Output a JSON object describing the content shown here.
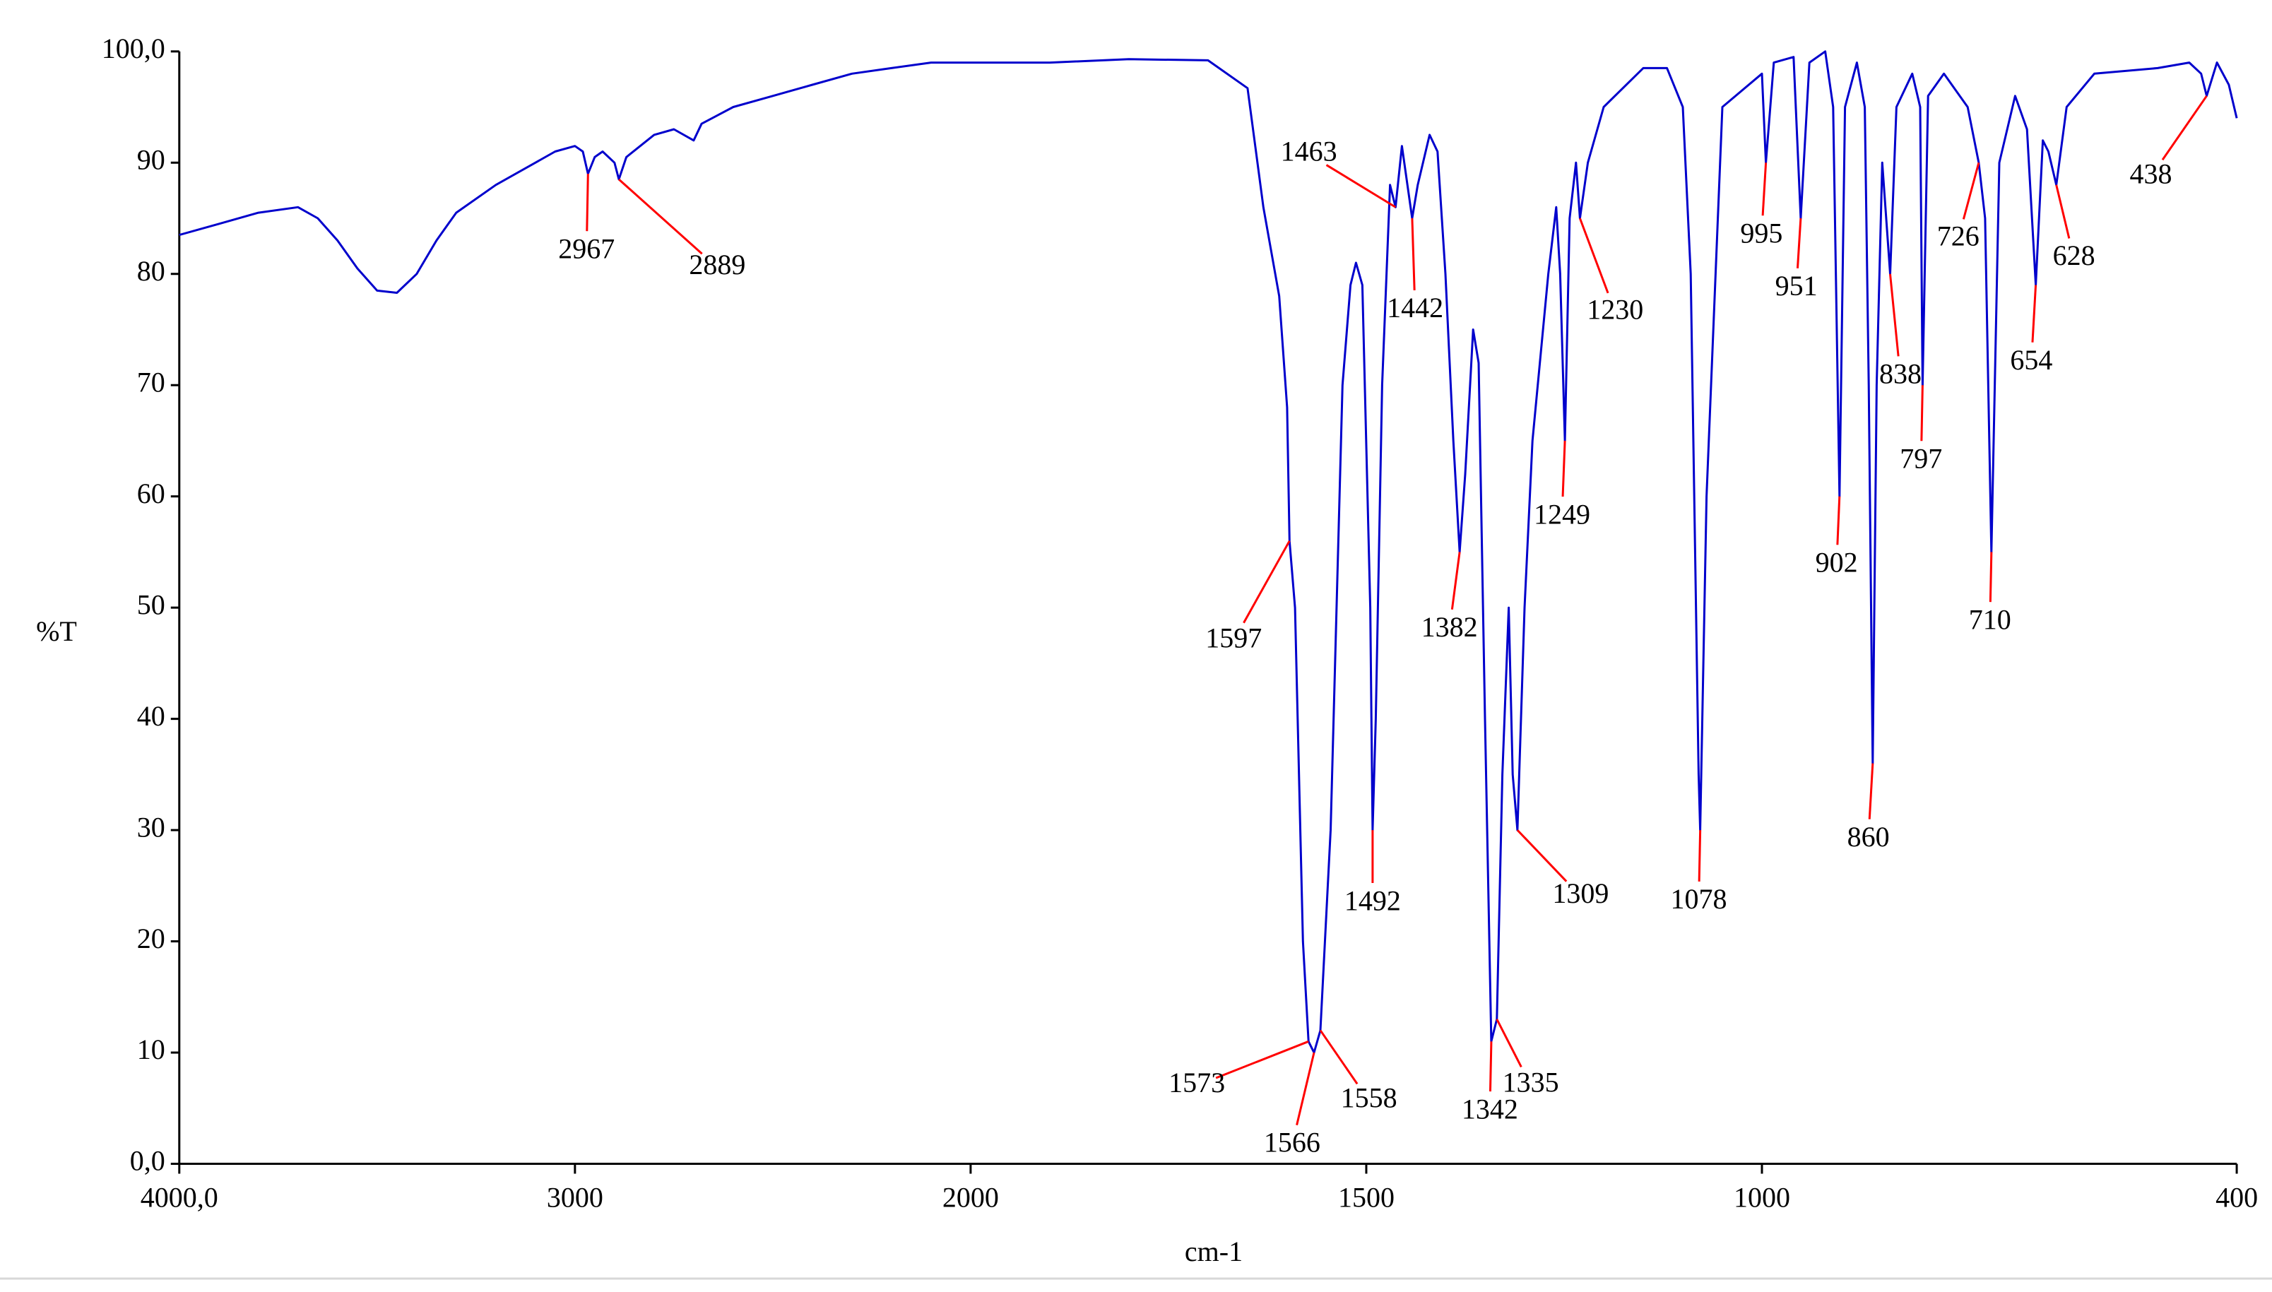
{
  "chart_data": {
    "type": "line",
    "x_label": "cm-1",
    "y_label": "%T",
    "xlim": [
      4000,
      400
    ],
    "ylim": [
      0,
      100
    ],
    "x_break": 2000,
    "x_expand": 2,
    "xticks": [
      {
        "value": 4000,
        "label": "4000,0"
      },
      3000,
      2000,
      1500,
      1000,
      400
    ],
    "yticks": [
      {
        "value": 0,
        "label": "0,0"
      },
      10,
      20,
      30,
      40,
      50,
      60,
      70,
      80,
      90,
      {
        "value": 100,
        "label": "100,0"
      }
    ],
    "color": "#0000cc",
    "x": [
      4000,
      3900,
      3800,
      3700,
      3650,
      3600,
      3550,
      3500,
      3450,
      3400,
      3350,
      3300,
      3200,
      3100,
      3050,
      3000,
      2980,
      2967,
      2950,
      2930,
      2900,
      2889,
      2870,
      2800,
      2750,
      2700,
      2680,
      2600,
      2500,
      2400,
      2300,
      2200,
      2100,
      2000,
      1900,
      1800,
      1700,
      1650,
      1630,
      1610,
      1600,
      1597,
      1590,
      1580,
      1573,
      1566,
      1558,
      1545,
      1530,
      1520,
      1513,
      1505,
      1495,
      1492,
      1488,
      1480,
      1470,
      1463,
      1455,
      1448,
      1442,
      1435,
      1420,
      1410,
      1400,
      1390,
      1382,
      1375,
      1365,
      1358,
      1350,
      1342,
      1335,
      1328,
      1320,
      1315,
      1309,
      1300,
      1290,
      1270,
      1260,
      1255,
      1249,
      1243,
      1235,
      1230,
      1220,
      1200,
      1150,
      1120,
      1100,
      1090,
      1080,
      1078,
      1070,
      1050,
      1000,
      995,
      985,
      960,
      951,
      940,
      920,
      910,
      902,
      895,
      880,
      870,
      865,
      860,
      855,
      848,
      838,
      830,
      810,
      800,
      797,
      790,
      770,
      740,
      726,
      718,
      710,
      700,
      680,
      665,
      654,
      645,
      638,
      628,
      615,
      580,
      500,
      460,
      445,
      438,
      425,
      410,
      400
    ],
    "values": [
      83.5,
      84.5,
      85.5,
      86,
      85,
      83,
      80.5,
      78.5,
      78.3,
      80,
      83,
      85.5,
      88,
      90,
      91,
      91.5,
      91,
      89,
      90.5,
      91,
      90,
      88.5,
      90.5,
      92.5,
      93,
      92,
      93.5,
      95,
      96,
      97,
      98,
      98.5,
      99,
      99,
      99,
      99.3,
      99.2,
      96.7,
      86,
      78,
      68,
      56,
      50,
      20,
      11,
      10,
      12,
      30,
      70,
      79,
      81,
      79,
      50,
      30,
      40,
      70,
      88,
      86,
      91.5,
      88,
      85,
      88,
      92.5,
      91,
      80,
      65,
      55,
      62,
      75,
      72,
      40,
      11,
      13,
      35,
      50,
      35,
      30,
      50,
      65,
      80,
      86,
      80,
      65,
      85,
      90,
      85,
      90,
      95,
      98.5,
      98.5,
      95,
      80,
      35,
      30,
      60,
      95,
      98,
      90,
      99,
      99.5,
      85,
      99,
      100,
      95,
      60,
      95,
      99,
      95,
      70,
      36,
      70,
      90,
      80,
      95,
      98,
      95,
      70,
      96,
      98,
      95,
      90,
      85,
      55,
      90,
      96,
      93,
      79,
      92,
      91,
      88,
      95,
      98,
      98.5,
      99,
      98,
      96,
      99,
      97,
      94
    ],
    "peaks": {
      "color": "#ff0000",
      "x": [
        2967,
        2889,
        1597,
        1573,
        1566,
        1558,
        1492,
        1463,
        1442,
        1382,
        1342,
        1335,
        1309,
        1249,
        1230,
        1078,
        995,
        951,
        902,
        860,
        838,
        797,
        726,
        710,
        654,
        628,
        438
      ],
      "y": [
        89,
        88.5,
        56,
        11,
        10,
        12,
        30,
        86,
        85,
        55,
        11,
        13,
        30,
        65,
        85,
        30,
        90,
        85,
        60,
        36,
        80,
        70,
        90,
        55,
        79,
        88,
        96
      ]
    }
  }
}
